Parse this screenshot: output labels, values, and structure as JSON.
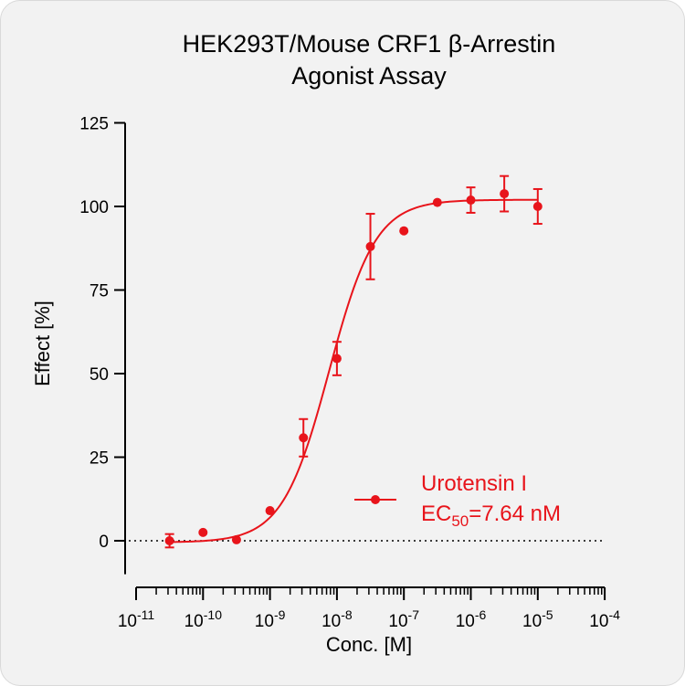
{
  "chart_data": {
    "type": "scatter",
    "title_line1": "HEK293T/Mouse CRF1 β-Arrestin",
    "title_line2": "Agonist Assay",
    "xlabel": "Conc. [M]",
    "ylabel": "Effect  [%]",
    "x_scale": "log",
    "xlim": [
      1e-11,
      0.0001
    ],
    "ylim": [
      -10,
      125
    ],
    "y_ticks": [
      0,
      25,
      50,
      75,
      100,
      125
    ],
    "y_tick_labels": [
      "0",
      "25",
      "50",
      "75",
      "100",
      "125"
    ],
    "x_tick_labels": [
      {
        "base": "10",
        "exp": "-11"
      },
      {
        "base": "10",
        "exp": "-10"
      },
      {
        "base": "10",
        "exp": "-9"
      },
      {
        "base": "10",
        "exp": "-8"
      },
      {
        "base": "10",
        "exp": "-7"
      },
      {
        "base": "10",
        "exp": "-6"
      },
      {
        "base": "10",
        "exp": "-5"
      },
      {
        "base": "10",
        "exp": "-4"
      }
    ],
    "series": [
      {
        "name": "Urotensin I",
        "color": "#e8141b",
        "ec50_label_prefix": "EC",
        "ec50_label_sub": "50",
        "ec50_label_value": "=7.64 nM",
        "points": [
          {
            "x": 3.16e-11,
            "y": 0.0,
            "err": 2.0
          },
          {
            "x": 1e-10,
            "y": 2.5,
            "err": 0
          },
          {
            "x": 3.16e-10,
            "y": 0.3,
            "err": 0
          },
          {
            "x": 1e-09,
            "y": 9.0,
            "err": 0
          },
          {
            "x": 3.16e-09,
            "y": 30.8,
            "err": 5.6
          },
          {
            "x": 1e-08,
            "y": 54.5,
            "err": 5.0
          },
          {
            "x": 3.16e-08,
            "y": 88.0,
            "err": 9.8
          },
          {
            "x": 1e-07,
            "y": 92.7,
            "err": 0
          },
          {
            "x": 3.16e-07,
            "y": 101.2,
            "err": 0
          },
          {
            "x": 1e-06,
            "y": 101.9,
            "err": 3.8
          },
          {
            "x": 3.16e-06,
            "y": 103.8,
            "err": 5.3
          },
          {
            "x": 1e-05,
            "y": 100.0,
            "err": 5.2
          }
        ],
        "fit": {
          "bottom": -0.5,
          "top": 102,
          "log_ec50": -8.117,
          "hill": 1.25
        }
      }
    ],
    "zero_line": "dotted"
  }
}
